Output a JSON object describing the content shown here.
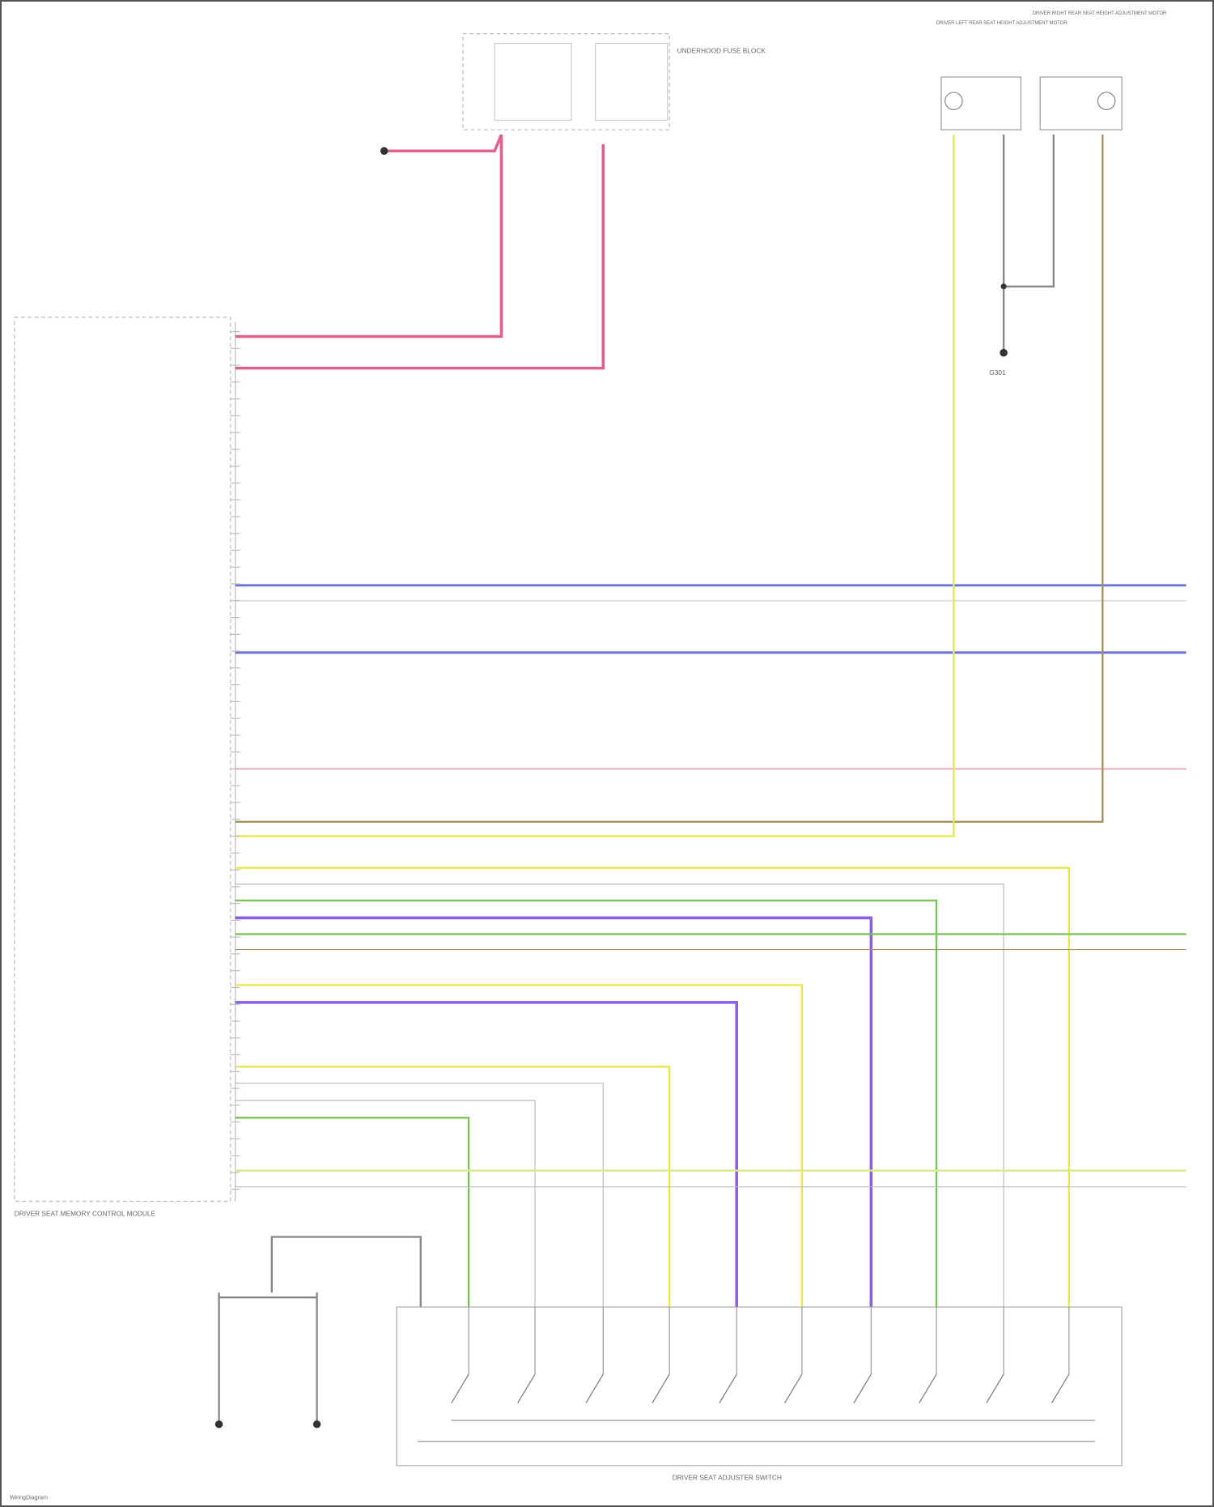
{
  "diagram": {
    "module_label": "DRIVER SEAT MEMORY CONTROL MODULE",
    "switch_label": "DRIVER SEAT ADJUSTER SWITCH",
    "fuse_block_label": "UNDERHOOD FUSE BLOCK",
    "left_motor_label": "DRIVER LEFT REAR SEAT HEIGHT ADJUSTMENT MOTOR",
    "right_motor_label": "DRIVER RIGHT REAR SEAT HEIGHT ADJUSTMENT MOTOR",
    "ground_label": "G301",
    "footer": "WiringDiagram",
    "wire_colors": {
      "power": "#e0628a",
      "data": "#6b72d8",
      "signal_yellow": "#e8e84a",
      "signal_green": "#7cc25a",
      "signal_purple": "#8a5fe6",
      "ground": "#888888",
      "brown": "#a8925a",
      "pink_thin": "#f0a0b0"
    }
  }
}
